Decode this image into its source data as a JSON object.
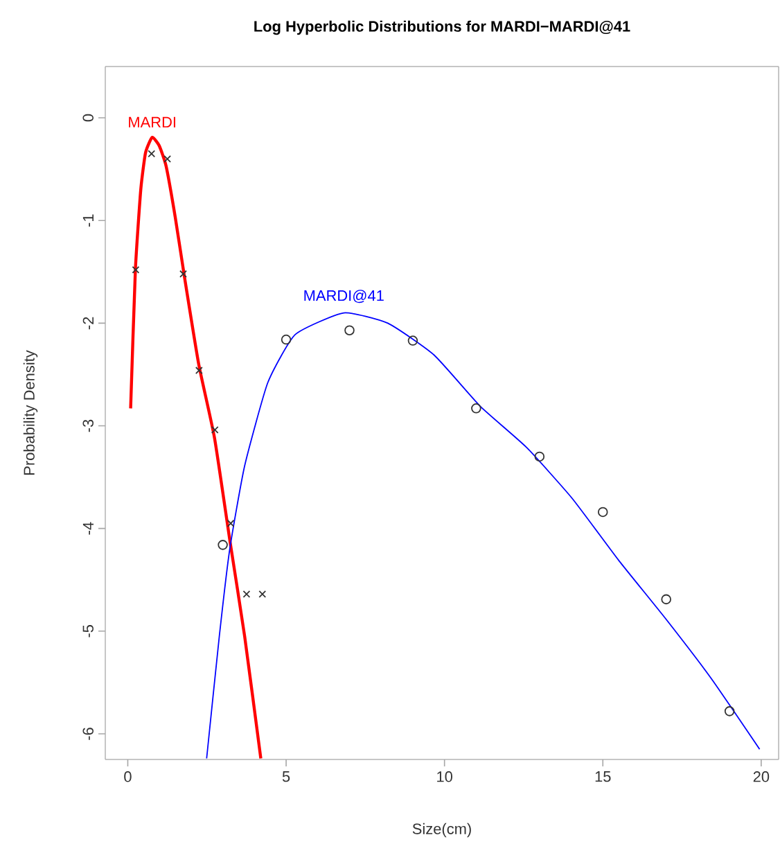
{
  "chart_data": {
    "type": "line",
    "title": "Log Hyperbolic Distributions for MARDI−MARDI@41",
    "xlabel": "Size(cm)",
    "ylabel": "Probability Density",
    "xlim": [
      -0.71,
      20.55
    ],
    "ylim": [
      -6.25,
      0.5
    ],
    "xticks": [
      0,
      5,
      10,
      15,
      20
    ],
    "yticks": [
      -6,
      -5,
      -4,
      -3,
      -2,
      -1,
      0
    ],
    "grid": false,
    "series": [
      {
        "name": "MARDI",
        "color": "#ff0000",
        "marker": "none",
        "x": [
          0.09,
          0.24,
          0.41,
          0.56,
          0.77,
          0.99,
          1.21,
          1.5,
          1.79,
          2.24,
          2.74,
          3.22,
          3.69,
          4.2
        ],
        "values": [
          -2.83,
          -1.48,
          -0.7,
          -0.34,
          -0.19,
          -0.27,
          -0.47,
          -0.97,
          -1.55,
          -2.4,
          -3.12,
          -4.11,
          -5.05,
          -6.24
        ]
      },
      {
        "type": "scatter",
        "color": "#333333",
        "marker": "cross",
        "x": [
          0.25,
          0.75,
          1.25,
          1.75,
          2.25,
          2.75,
          3.25,
          3.75,
          4.25
        ],
        "values": [
          -1.48,
          -0.35,
          -0.4,
          -1.52,
          -2.46,
          -3.04,
          -3.95,
          -4.64,
          -4.64
        ]
      },
      {
        "name": "MARDI@41",
        "color": "#0000ff",
        "marker": "none",
        "x": [
          2.49,
          2.89,
          3.22,
          3.69,
          4.42,
          5.29,
          6.82,
          8.21,
          9.67,
          11.13,
          12.59,
          14.04,
          15.5,
          16.96,
          18.42,
          19.95
        ],
        "values": [
          -6.24,
          -5.05,
          -4.2,
          -3.39,
          -2.58,
          -2.11,
          -1.9,
          -2.0,
          -2.31,
          -2.81,
          -3.21,
          -3.71,
          -4.31,
          -4.87,
          -5.46,
          -6.15
        ]
      },
      {
        "type": "scatter",
        "color": "#333333",
        "marker": "circle",
        "x": [
          3,
          5,
          7,
          9,
          11,
          13,
          15,
          17,
          19
        ],
        "values": [
          -4.16,
          -2.16,
          -2.07,
          -2.17,
          -2.83,
          -3.3,
          -3.84,
          -4.69,
          -5.78
        ]
      }
    ]
  }
}
